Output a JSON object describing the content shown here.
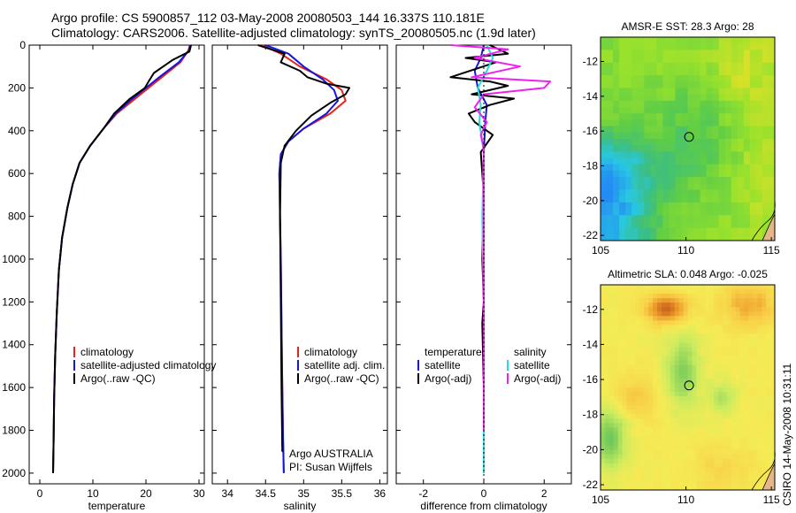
{
  "header": {
    "line1": "Argo profile: CS 5900857_112 03-May-2008 20080503_144 16.337S 110.181E",
    "line2": "Climatology: CARS2006. Satellite-adjusted climatology: synTS_20080505.nc (1.9d later)"
  },
  "side_label": "CSIRO 14-May-2008 10:31:11",
  "colors": {
    "climatology": "#e8231a",
    "satellite": "#1515e0",
    "argo": "#000000",
    "satellite_diff_salinity": "#22dddd",
    "argo_diff_salinity": "#ee22ee"
  },
  "chart_data": [
    {
      "type": "line",
      "id": "temperature",
      "xlabel": "temperature",
      "xlim": [
        -2,
        31
      ],
      "ylim": [
        0,
        2050
      ],
      "y_inverted": true,
      "xticks": [
        0,
        10,
        20,
        30
      ],
      "yticks": [
        0,
        200,
        400,
        600,
        800,
        1000,
        1200,
        1400,
        1600,
        1800,
        2000
      ],
      "legend": [
        "climatology",
        "satellite-adjusted climatology",
        "Argo(..raw -QC)"
      ],
      "series": [
        {
          "name": "climatology",
          "color_key": "climatology",
          "x": [
            28.3,
            28.0,
            26.5,
            23.0,
            20.5,
            17.5,
            14.5,
            12.0,
            9.5,
            7.5,
            6.2,
            5.2,
            4.2,
            3.6,
            3.2,
            2.9,
            2.7,
            2.6,
            2.5
          ],
          "y": [
            0,
            25,
            80,
            150,
            200,
            260,
            320,
            390,
            470,
            550,
            650,
            760,
            900,
            1050,
            1250,
            1450,
            1650,
            1850,
            2000
          ]
        },
        {
          "name": "satellite-adjusted climatology",
          "color_key": "satellite",
          "x": [
            28.3,
            28.1,
            26.2,
            22.5,
            20.0,
            17.0,
            14.3,
            12.0,
            9.5,
            7.5,
            6.2,
            5.2,
            4.2,
            3.6,
            3.2,
            2.9,
            2.7,
            2.6,
            2.5
          ],
          "y": [
            0,
            25,
            80,
            150,
            200,
            260,
            320,
            390,
            470,
            550,
            650,
            760,
            900,
            1050,
            1250,
            1450,
            1650,
            1850,
            2000
          ]
        },
        {
          "name": "Argo(..raw -QC)",
          "color_key": "argo",
          "x": [
            28.5,
            28.2,
            25.0,
            21.5,
            20.5,
            19.8,
            17.0,
            14.0,
            12.0,
            9.5,
            7.5,
            6.2,
            5.2,
            4.2,
            3.6,
            3.2,
            2.9,
            2.7,
            2.6,
            2.5
          ],
          "y": [
            0,
            30,
            70,
            130,
            170,
            200,
            250,
            320,
            390,
            470,
            550,
            650,
            760,
            900,
            1050,
            1250,
            1450,
            1650,
            1850,
            2000
          ]
        }
      ]
    },
    {
      "type": "line",
      "id": "salinity",
      "xlabel": "salinity",
      "xlim": [
        33.8,
        36.1
      ],
      "ylim": [
        0,
        2050
      ],
      "y_inverted": true,
      "xticks": [
        34,
        34.5,
        35,
        35.5,
        36
      ],
      "legend": [
        "climatology",
        "satellite adj. clim.",
        "Argo(..raw -QC)"
      ],
      "annotations": [
        "Argo AUSTRALIA",
        "PI: Susan Wijffels"
      ],
      "series": [
        {
          "name": "climatology",
          "color_key": "climatology",
          "x": [
            34.45,
            34.7,
            34.95,
            35.3,
            35.5,
            35.55,
            35.35,
            35.0,
            34.8,
            34.7,
            34.68,
            34.69,
            34.7,
            34.71,
            34.72,
            34.73,
            34.74
          ],
          "y": [
            0,
            40,
            100,
            160,
            210,
            260,
            320,
            390,
            450,
            510,
            600,
            800,
            1000,
            1300,
            1600,
            1850,
            2000
          ]
        },
        {
          "name": "satellite adj. clim.",
          "color_key": "satellite",
          "x": [
            34.5,
            34.8,
            35.0,
            35.25,
            35.4,
            35.45,
            35.3,
            35.0,
            34.8,
            34.7,
            34.68,
            34.69,
            34.7,
            34.71,
            34.72,
            34.73,
            34.74
          ],
          "y": [
            0,
            40,
            100,
            160,
            210,
            260,
            320,
            390,
            450,
            510,
            600,
            800,
            1000,
            1300,
            1600,
            1850,
            2000
          ]
        },
        {
          "name": "Argo(..raw -QC)",
          "color_key": "argo",
          "x": [
            34.4,
            34.75,
            34.7,
            34.95,
            35.05,
            35.3,
            35.6,
            35.55,
            35.35,
            35.1,
            34.9,
            34.75,
            34.7,
            34.69,
            34.7,
            34.71,
            34.72
          ],
          "y": [
            0,
            40,
            80,
            120,
            150,
            180,
            200,
            230,
            270,
            330,
            400,
            470,
            550,
            800,
            1200,
            1600,
            1900
          ]
        }
      ]
    },
    {
      "type": "line",
      "id": "difference",
      "xlabel": "difference from climatology",
      "xlim": [
        -2.9,
        2.9
      ],
      "ylim": [
        0,
        2050
      ],
      "y_inverted": true,
      "xticks": [
        -2,
        0,
        2
      ],
      "legend_left": [
        "temperature",
        "satellite",
        "Argo(-adj)"
      ],
      "legend_right": [
        "salinity",
        "satellite",
        "Argo(-adj)"
      ],
      "series": [
        {
          "name": "temperature satellite",
          "color_key": "satellite",
          "x": [
            0.0,
            -0.1,
            -0.3,
            -0.2,
            0.1,
            0.05,
            0.0,
            0.0,
            0.0,
            0.0,
            0.0
          ],
          "y": [
            0,
            60,
            120,
            200,
            280,
            360,
            500,
            800,
            1200,
            1600,
            2000
          ]
        },
        {
          "name": "temperature Argo(-adj)",
          "color_key": "argo",
          "x": [
            0.2,
            0.8,
            -0.6,
            0.4,
            -1.1,
            0.2,
            0.8,
            -0.4,
            1.0,
            0.2,
            -0.5,
            -0.3,
            0.3,
            -0.1,
            0.0,
            -0.05,
            0.0,
            -0.05,
            0.0,
            0.0
          ],
          "y": [
            0,
            40,
            60,
            80,
            150,
            170,
            190,
            230,
            250,
            280,
            320,
            360,
            420,
            500,
            700,
            1000,
            1200,
            1300,
            1600,
            2000
          ]
        },
        {
          "name": "salinity satellite",
          "color_key": "satellite_diff_salinity",
          "x": [
            0.1,
            0.3,
            0.1,
            -0.2,
            -0.1,
            -0.15,
            0.0,
            -0.05,
            0.0,
            0.0,
            0.0
          ],
          "y": [
            0,
            60,
            120,
            200,
            280,
            360,
            500,
            800,
            1200,
            1600,
            2000
          ]
        },
        {
          "name": "salinity Argo(-adj)",
          "color_key": "argo_diff_salinity",
          "x": [
            -1.1,
            0.8,
            -0.3,
            1.2,
            -0.4,
            2.2,
            2.0,
            0.0,
            -0.3,
            0.1,
            -0.1,
            0.0,
            0.0,
            0.0
          ],
          "y": [
            0,
            20,
            60,
            100,
            150,
            170,
            200,
            230,
            290,
            360,
            420,
            480,
            800,
            1800
          ]
        }
      ]
    },
    {
      "type": "heatmap",
      "id": "sst-map",
      "title": "AMSR-E SST: 28.3 Argo: 28",
      "xlim": [
        105,
        115.2
      ],
      "ylim": [
        -22.3,
        -10.6
      ],
      "xticks": [
        105,
        110,
        115
      ],
      "yticks": [
        -12,
        -14,
        -16,
        -18,
        -20,
        -22
      ],
      "marker": [
        110.181,
        -16.337
      ]
    },
    {
      "type": "heatmap",
      "id": "sla-map",
      "title": "Altimetric SLA: 0.048 Argo: -0.025",
      "xlim": [
        105,
        115.2
      ],
      "ylim": [
        -22.3,
        -10.6
      ],
      "xticks": [
        105,
        110,
        115
      ],
      "yticks": [
        -12,
        -14,
        -16,
        -18,
        -20,
        -22
      ],
      "marker": [
        110.181,
        -16.337
      ]
    }
  ]
}
